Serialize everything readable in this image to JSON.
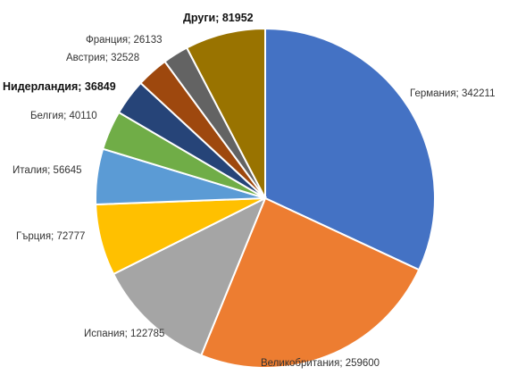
{
  "chart_data": {
    "type": "pie",
    "title": "",
    "start_angle_deg": 0,
    "direction": "clockwise",
    "legend": "none",
    "data_labels": "category; value",
    "slices": [
      {
        "name": "Германия",
        "value": 342211,
        "color": "#4472C4",
        "label": "Германия; 342211",
        "bold": false
      },
      {
        "name": "Великобритания",
        "value": 259600,
        "color": "#ED7D31",
        "label": "Великобритания; 259600",
        "bold": false
      },
      {
        "name": "Испания",
        "value": 122785,
        "color": "#A5A5A5",
        "label": "Испания; 122785",
        "bold": false
      },
      {
        "name": "Гърция",
        "value": 72777,
        "color": "#FFC000",
        "label": "Гърция; 72777",
        "bold": false
      },
      {
        "name": "Италия",
        "value": 56645,
        "color": "#5B9BD5",
        "label": "Италия; 56645",
        "bold": false
      },
      {
        "name": "Белгия",
        "value": 40110,
        "color": "#70AD47",
        "label": "Белгия; 40110",
        "bold": false
      },
      {
        "name": "Нидерландия",
        "value": 36849,
        "color": "#264478",
        "label": "Нидерландия; 36849",
        "bold": true
      },
      {
        "name": "Австрия",
        "value": 32528,
        "color": "#9E480E",
        "label": "Австрия; 32528",
        "bold": false
      },
      {
        "name": "Франция",
        "value": 26133,
        "color": "#636363",
        "label": "Франция; 26133",
        "bold": false
      },
      {
        "name": "Други",
        "value": 81952,
        "color": "#997300",
        "label": "Други; 81952",
        "bold": true
      }
    ]
  }
}
